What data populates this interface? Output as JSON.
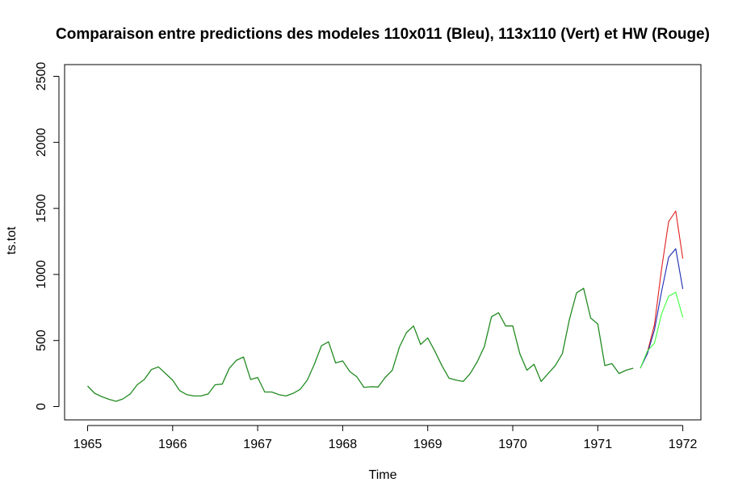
{
  "chart_data": {
    "type": "line",
    "title": "Comparaison entre predictions des modeles 110x011 (Bleu), 113x110 (Vert) et HW (Rouge)",
    "xlabel": "Time",
    "ylabel": "ts.tot",
    "xlim": [
      1965,
      1972
    ],
    "ylim": [
      0,
      2500
    ],
    "x_ticks": [
      "1965",
      "1966",
      "1967",
      "1968",
      "1969",
      "1970",
      "1971",
      "1972"
    ],
    "y_ticks": [
      "0",
      "500",
      "1000",
      "1500",
      "2000",
      "2500"
    ],
    "grid": false,
    "legend": "none",
    "history": {
      "start": 1965,
      "frequency": 12,
      "color": "#228B22",
      "values": [
        155,
        100,
        75,
        55,
        40,
        58,
        95,
        165,
        205,
        280,
        300,
        250,
        200,
        120,
        90,
        80,
        80,
        95,
        165,
        170,
        290,
        350,
        375,
        205,
        220,
        110,
        110,
        90,
        80,
        100,
        130,
        200,
        320,
        460,
        490,
        330,
        345,
        265,
        225,
        145,
        150,
        148,
        220,
        275,
        450,
        560,
        610,
        470,
        520,
        420,
        310,
        215,
        200,
        190,
        250,
        340,
        455,
        680,
        710,
        610,
        610,
        400,
        275,
        320,
        190,
        250,
        310,
        400,
        660,
        860,
        895,
        670,
        625,
        310,
        325,
        250,
        275,
        290
      ]
    },
    "series": [
      {
        "name": "HW",
        "color": "#DF2020",
        "start": 1971.5,
        "frequency": 12,
        "values": [
          290,
          410,
          620,
          1040,
          1400,
          1480,
          1120
        ]
      },
      {
        "name": "110x011",
        "color": "#1C2BB0",
        "start": 1971.5,
        "frequency": 12,
        "values": [
          290,
          400,
          580,
          870,
          1130,
          1195,
          890
        ]
      },
      {
        "name": "113x110",
        "color": "#3CFF3C",
        "start": 1971.5,
        "frequency": 12,
        "values": [
          290,
          420,
          480,
          700,
          835,
          865,
          675
        ]
      }
    ]
  }
}
